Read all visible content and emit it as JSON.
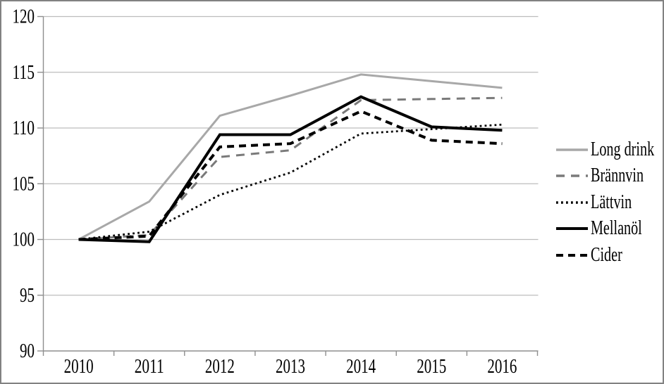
{
  "colors": {
    "background": "#ffffff",
    "border": "#828282",
    "gridline": "#bdbdbd",
    "axis": "#8f8f8f",
    "text": "#000000"
  },
  "chart_data": {
    "type": "line",
    "title": "",
    "xlabel": "",
    "ylabel": "",
    "categories": [
      "2010",
      "2011",
      "2012",
      "2013",
      "2014",
      "2015",
      "2016"
    ],
    "yticks": [
      90,
      95,
      100,
      105,
      110,
      115,
      120
    ],
    "ylim": [
      90,
      120
    ],
    "grid": true,
    "legend_position": "right",
    "draw_order": [
      0,
      1,
      2,
      4,
      3
    ],
    "series": [
      {
        "name": "Long drink",
        "color": "#a8a8a8",
        "width": 3,
        "dash": "",
        "values": [
          100,
          103.4,
          111.1,
          112.9,
          114.8,
          114.2,
          113.6
        ]
      },
      {
        "name": "Brännvin",
        "color": "#7a7a7a",
        "width": 3,
        "dash": "12 9",
        "values": [
          100,
          100.4,
          107.4,
          108.0,
          112.5,
          112.6,
          112.7
        ]
      },
      {
        "name": "Lättvin",
        "color": "#000000",
        "width": 2.8,
        "dash": "2.8 4.2",
        "values": [
          100,
          100.7,
          104.0,
          106.0,
          109.5,
          109.9,
          110.3
        ]
      },
      {
        "name": "Mellanöl",
        "color": "#000000",
        "width": 4,
        "dash": "",
        "values": [
          100,
          99.8,
          109.4,
          109.4,
          112.8,
          110.1,
          109.8
        ]
      },
      {
        "name": "Cider",
        "color": "#000000",
        "width": 4,
        "dash": "10 7",
        "values": [
          100,
          100.3,
          108.3,
          108.6,
          111.5,
          108.9,
          108.6
        ]
      }
    ]
  }
}
